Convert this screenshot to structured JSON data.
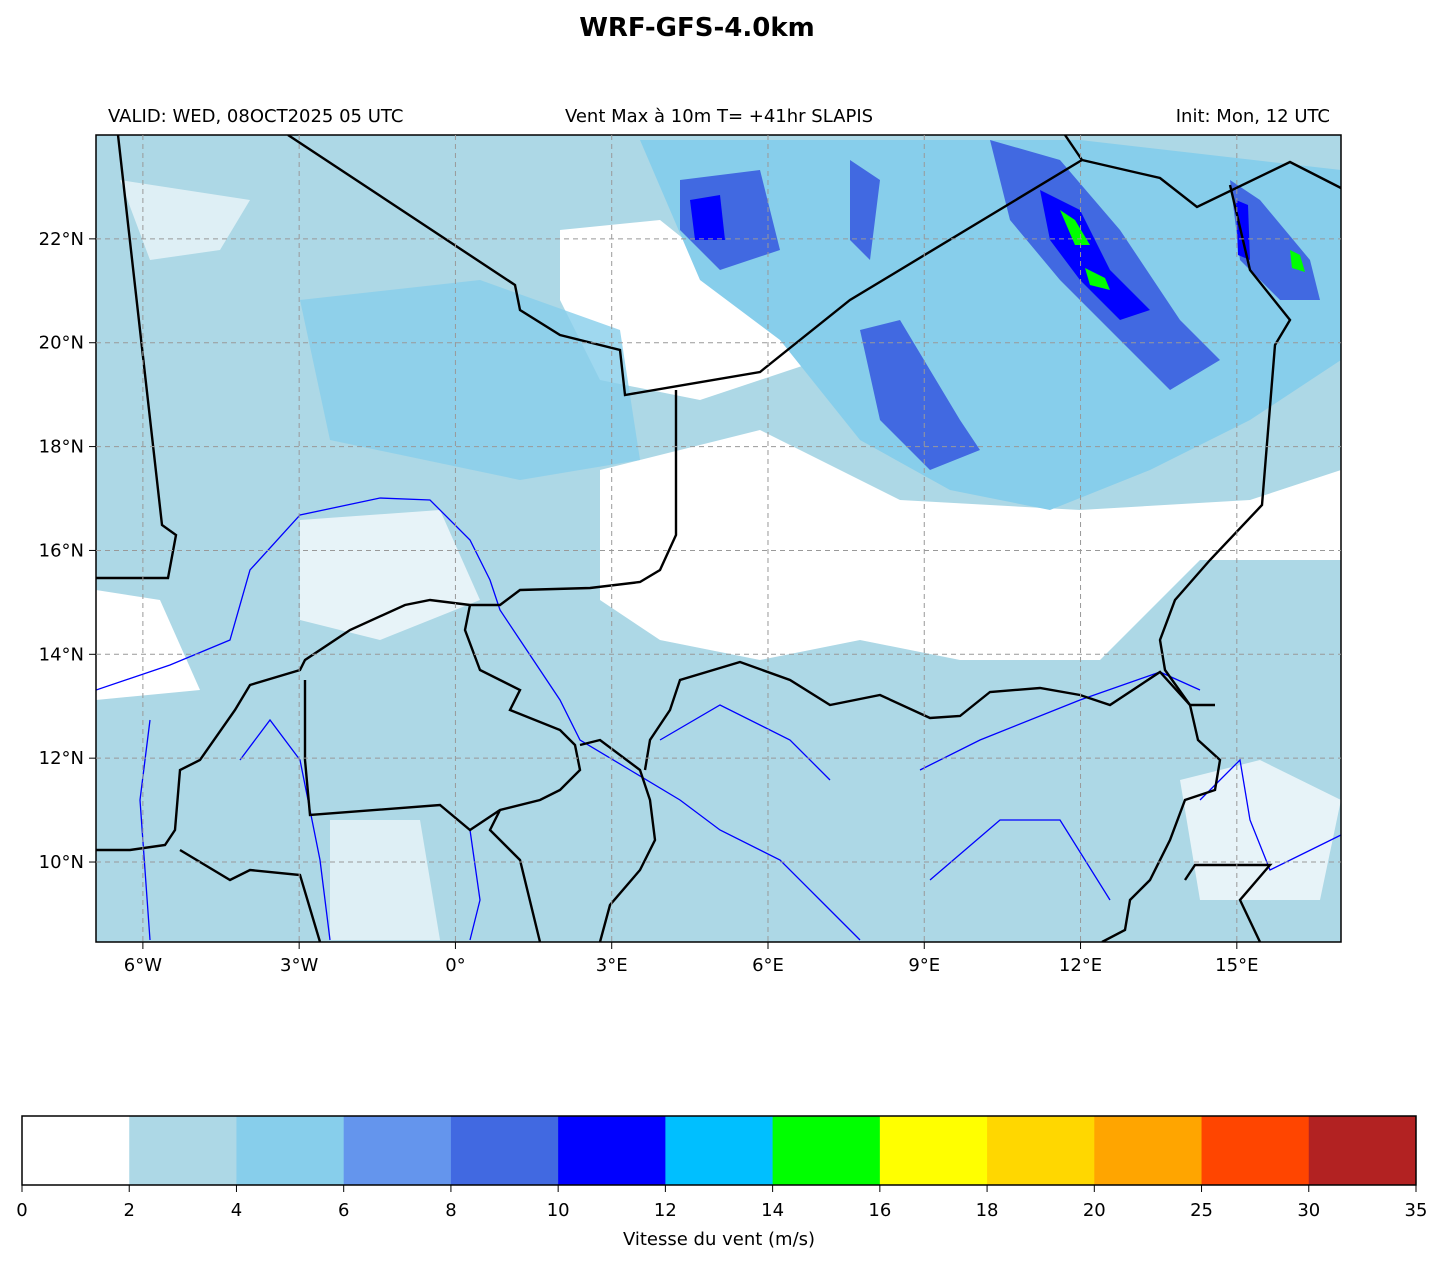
{
  "title": "WRF-GFS-4.0km",
  "subtitle_left": "VALID: WED, 08OCT2025 05 UTC",
  "subtitle_center": "Vent Max à 10m T= +41hr SLAPIS",
  "subtitle_right": "Init: Mon, 12 UTC",
  "map": {
    "xlim": [
      -6.9,
      17
    ],
    "ylim": [
      8.46,
      24
    ],
    "grid": true,
    "xticks": [
      {
        "value": -6,
        "label": "6°W"
      },
      {
        "value": -3,
        "label": "3°W"
      },
      {
        "value": 0,
        "label": "0°"
      },
      {
        "value": 3,
        "label": "3°E"
      },
      {
        "value": 6,
        "label": "6°E"
      },
      {
        "value": 9,
        "label": "9°E"
      },
      {
        "value": 12,
        "label": "12°E"
      },
      {
        "value": 15,
        "label": "15°E"
      }
    ],
    "yticks": [
      {
        "value": 10,
        "label": "10°N"
      },
      {
        "value": 12,
        "label": "12°N"
      },
      {
        "value": 14,
        "label": "14°N"
      },
      {
        "value": 16,
        "label": "16°N"
      },
      {
        "value": 18,
        "label": "18°N"
      },
      {
        "value": 20,
        "label": "20°N"
      },
      {
        "value": 22,
        "label": "22°N"
      }
    ]
  },
  "colorbar": {
    "levels": [
      0,
      2,
      4,
      6,
      8,
      10,
      12,
      14,
      16,
      18,
      20,
      25,
      30,
      35
    ],
    "colors": [
      "#ffffff",
      "#add8e6",
      "#87ceeb",
      "#6495ed",
      "#4169e1",
      "#0000ff",
      "#00bfff",
      "#00ff00",
      "#ffff00",
      "#ffd700",
      "#ffa500",
      "#ff4500",
      "#b22222"
    ],
    "label": "Vitesse du vent (m/s)"
  }
}
